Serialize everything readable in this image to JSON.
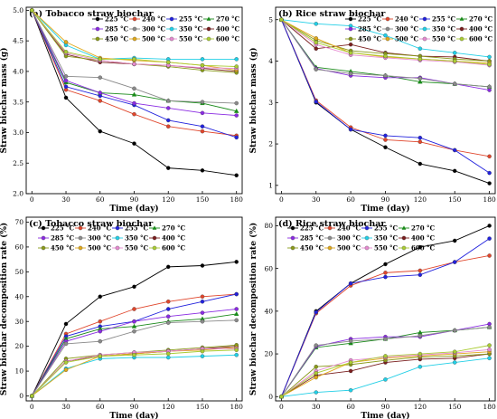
{
  "chart_data": [
    {
      "type": "line",
      "title": "(a) Tobacco straw biochar",
      "xlabel": "Time (day)",
      "ylabel": "Straw biochar mass (g)",
      "x": [
        0,
        30,
        60,
        90,
        120,
        150,
        180
      ],
      "xlim": [
        -5,
        185
      ],
      "ylim": [
        2.0,
        5.05
      ],
      "yticks": [
        2.0,
        2.5,
        3.0,
        3.5,
        4.0,
        4.5,
        5.0
      ],
      "legend_position": "top-right",
      "series": [
        {
          "name": "225 °C",
          "color": "#000000",
          "values": [
            5.0,
            3.57,
            3.02,
            2.82,
            2.42,
            2.38,
            2.3
          ]
        },
        {
          "name": "240 °C",
          "color": "#e0462c",
          "values": [
            5.0,
            3.7,
            3.52,
            3.3,
            3.1,
            3.02,
            2.95
          ]
        },
        {
          "name": "255 °C",
          "color": "#2222dd",
          "values": [
            5.0,
            3.75,
            3.6,
            3.45,
            3.2,
            3.1,
            2.92
          ]
        },
        {
          "name": "270 °C",
          "color": "#1a8a1a",
          "values": [
            5.0,
            3.82,
            3.65,
            3.62,
            3.52,
            3.48,
            3.35
          ]
        },
        {
          "name": "285 °C",
          "color": "#8a2be2",
          "values": [
            5.0,
            3.85,
            3.65,
            3.48,
            3.4,
            3.32,
            3.28
          ]
        },
        {
          "name": "300 °C",
          "color": "#8a8a8a",
          "values": [
            5.0,
            3.92,
            3.9,
            3.72,
            3.52,
            3.5,
            3.48
          ]
        },
        {
          "name": "350 °C",
          "color": "#22cfe6",
          "values": [
            5.0,
            4.43,
            4.2,
            4.22,
            4.2,
            4.2,
            4.2
          ]
        },
        {
          "name": "400 °C",
          "color": "#7a1e1e",
          "values": [
            5.0,
            4.28,
            4.15,
            4.12,
            4.1,
            4.05,
            4.0
          ]
        },
        {
          "name": "450 °C",
          "color": "#8a9a1a",
          "values": [
            5.0,
            4.25,
            4.18,
            4.12,
            4.08,
            4.02,
            3.98
          ]
        },
        {
          "name": "500 °C",
          "color": "#e0a81a",
          "values": [
            5.0,
            4.48,
            4.22,
            4.18,
            4.15,
            4.1,
            4.02
          ]
        },
        {
          "name": "550 °C",
          "color": "#e68ad0",
          "values": [
            5.0,
            4.3,
            4.18,
            4.12,
            4.1,
            4.06,
            4.05
          ]
        },
        {
          "name": "600 °C",
          "color": "#aacc33",
          "values": [
            5.0,
            4.32,
            4.2,
            4.2,
            4.15,
            4.1,
            4.08
          ]
        }
      ]
    },
    {
      "type": "line",
      "title": "(b) Rice straw biochar",
      "xlabel": "Time (day)",
      "ylabel": "Straw biochar mass (g)",
      "x": [
        0,
        30,
        60,
        90,
        120,
        150,
        180
      ],
      "xlim": [
        -5,
        185
      ],
      "ylim": [
        0.8,
        5.3
      ],
      "yticks": [
        1,
        2,
        3,
        4,
        5
      ],
      "legend_position": "top-right",
      "series": [
        {
          "name": "225 °C",
          "color": "#000000",
          "values": [
            5.0,
            3.0,
            2.35,
            1.92,
            1.52,
            1.35,
            1.05
          ]
        },
        {
          "name": "240 °C",
          "color": "#e0462c",
          "values": [
            5.0,
            3.05,
            2.4,
            2.1,
            2.05,
            1.85,
            1.7
          ]
        },
        {
          "name": "255 °C",
          "color": "#2222dd",
          "values": [
            5.0,
            3.02,
            2.35,
            2.2,
            2.15,
            1.85,
            1.3
          ]
        },
        {
          "name": "270 °C",
          "color": "#1a8a1a",
          "values": [
            5.0,
            3.85,
            3.75,
            3.65,
            3.5,
            3.45,
            3.38
          ]
        },
        {
          "name": "285 °C",
          "color": "#8a2be2",
          "values": [
            5.0,
            3.82,
            3.65,
            3.6,
            3.6,
            3.45,
            3.3
          ]
        },
        {
          "name": "300 °C",
          "color": "#8a8a8a",
          "values": [
            5.0,
            3.8,
            3.7,
            3.65,
            3.58,
            3.45,
            3.38
          ]
        },
        {
          "name": "350 °C",
          "color": "#22cfe6",
          "values": [
            5.0,
            4.9,
            4.85,
            4.62,
            4.3,
            4.2,
            4.1
          ]
        },
        {
          "name": "400 °C",
          "color": "#7a1e1e",
          "values": [
            5.0,
            4.3,
            4.4,
            4.2,
            4.12,
            4.1,
            4.0
          ]
        },
        {
          "name": "450 °C",
          "color": "#8a9a1a",
          "values": [
            5.0,
            4.5,
            4.25,
            4.18,
            4.12,
            4.05,
            4.0
          ]
        },
        {
          "name": "500 °C",
          "color": "#e0a81a",
          "values": [
            5.0,
            4.55,
            4.2,
            4.1,
            4.05,
            4.0,
            3.95
          ]
        },
        {
          "name": "550 °C",
          "color": "#e68ad0",
          "values": [
            5.0,
            4.4,
            4.15,
            4.08,
            4.02,
            3.98,
            3.9
          ]
        },
        {
          "name": "600 °C",
          "color": "#aacc33",
          "values": [
            5.0,
            4.45,
            4.2,
            4.12,
            4.05,
            4.0,
            3.92
          ]
        }
      ]
    },
    {
      "type": "line",
      "title": "(c) Tobacco straw biochar",
      "xlabel": "Time (day)",
      "ylabel": "Straw biochar decomposition rate (%)",
      "x": [
        0,
        30,
        60,
        90,
        120,
        150,
        180
      ],
      "xlim": [
        -5,
        185
      ],
      "ylim": [
        -2,
        72
      ],
      "yticks": [
        0,
        10,
        20,
        30,
        40,
        50,
        60,
        70
      ],
      "legend_position": "top-left",
      "series": [
        {
          "name": "225 °C",
          "color": "#000000",
          "values": [
            0,
            29,
            40,
            44,
            52,
            52.5,
            54
          ]
        },
        {
          "name": "240 °C",
          "color": "#e0462c",
          "values": [
            0,
            25,
            30,
            35,
            38,
            40,
            41
          ]
        },
        {
          "name": "255 °C",
          "color": "#2222dd",
          "values": [
            0,
            24,
            28,
            30,
            35,
            38,
            41
          ]
        },
        {
          "name": "270 °C",
          "color": "#1a8a1a",
          "values": [
            0,
            23,
            27,
            28,
            30,
            31,
            33
          ]
        },
        {
          "name": "285 °C",
          "color": "#8a2be2",
          "values": [
            0,
            22,
            26,
            30,
            32,
            33.5,
            35
          ]
        },
        {
          "name": "300 °C",
          "color": "#8a8a8a",
          "values": [
            0,
            21,
            22,
            26,
            29.5,
            30,
            30.5
          ]
        },
        {
          "name": "350 °C",
          "color": "#22cfe6",
          "values": [
            0,
            11,
            15,
            15.5,
            15.5,
            16,
            16.5
          ]
        },
        {
          "name": "400 °C",
          "color": "#7a1e1e",
          "values": [
            0,
            14,
            16,
            17,
            18,
            19,
            20
          ]
        },
        {
          "name": "450 °C",
          "color": "#8a9a1a",
          "values": [
            0,
            15,
            16.5,
            17.5,
            18.5,
            19.5,
            20.5
          ]
        },
        {
          "name": "500 °C",
          "color": "#e0a81a",
          "values": [
            0,
            10.5,
            16,
            17,
            18,
            18.5,
            19.5
          ]
        },
        {
          "name": "550 °C",
          "color": "#e68ad0",
          "values": [
            0,
            14,
            16.5,
            17.5,
            18,
            19,
            19
          ]
        },
        {
          "name": "600 °C",
          "color": "#aacc33",
          "values": [
            0,
            13.5,
            16,
            16.5,
            17,
            18,
            18.5
          ]
        }
      ]
    },
    {
      "type": "line",
      "title": "(d) Rice straw biochar",
      "xlabel": "Time (day)",
      "ylabel": "Straw biochar decomposition rate (%)",
      "x": [
        0,
        30,
        60,
        90,
        120,
        150,
        180
      ],
      "xlim": [
        -5,
        185
      ],
      "ylim": [
        -2,
        84
      ],
      "yticks": [
        0,
        20,
        40,
        60,
        80
      ],
      "legend_position": "top-left",
      "series": [
        {
          "name": "225 °C",
          "color": "#000000",
          "values": [
            0,
            40,
            53,
            62,
            70,
            73,
            80
          ]
        },
        {
          "name": "240 °C",
          "color": "#e0462c",
          "values": [
            0,
            39,
            52,
            58,
            59,
            63,
            66
          ]
        },
        {
          "name": "255 °C",
          "color": "#2222dd",
          "values": [
            0,
            39.5,
            53,
            56,
            57,
            63,
            74
          ]
        },
        {
          "name": "270 °C",
          "color": "#1a8a1a",
          "values": [
            0,
            23,
            25,
            27,
            30,
            31,
            32.5
          ]
        },
        {
          "name": "285 °C",
          "color": "#8a2be2",
          "values": [
            0,
            23.5,
            27,
            28,
            28,
            31,
            34
          ]
        },
        {
          "name": "300 °C",
          "color": "#8a8a8a",
          "values": [
            0,
            24,
            26,
            27,
            28.5,
            31,
            32.5
          ]
        },
        {
          "name": "350 °C",
          "color": "#22cfe6",
          "values": [
            0,
            2,
            3,
            8,
            14,
            16,
            18
          ]
        },
        {
          "name": "400 °C",
          "color": "#7a1e1e",
          "values": [
            0,
            10,
            12,
            16,
            17.5,
            18,
            20
          ]
        },
        {
          "name": "450 °C",
          "color": "#8a9a1a",
          "values": [
            0,
            14,
            15,
            17,
            18.5,
            19,
            20
          ]
        },
        {
          "name": "500 °C",
          "color": "#e0a81a",
          "values": [
            0,
            9,
            16,
            18,
            19,
            20,
            21
          ]
        },
        {
          "name": "550 °C",
          "color": "#e68ad0",
          "values": [
            0,
            12,
            17,
            18.5,
            19.5,
            20.5,
            22
          ]
        },
        {
          "name": "600 °C",
          "color": "#aacc33",
          "values": [
            0,
            11,
            16,
            19,
            20,
            21,
            24
          ]
        }
      ]
    }
  ]
}
